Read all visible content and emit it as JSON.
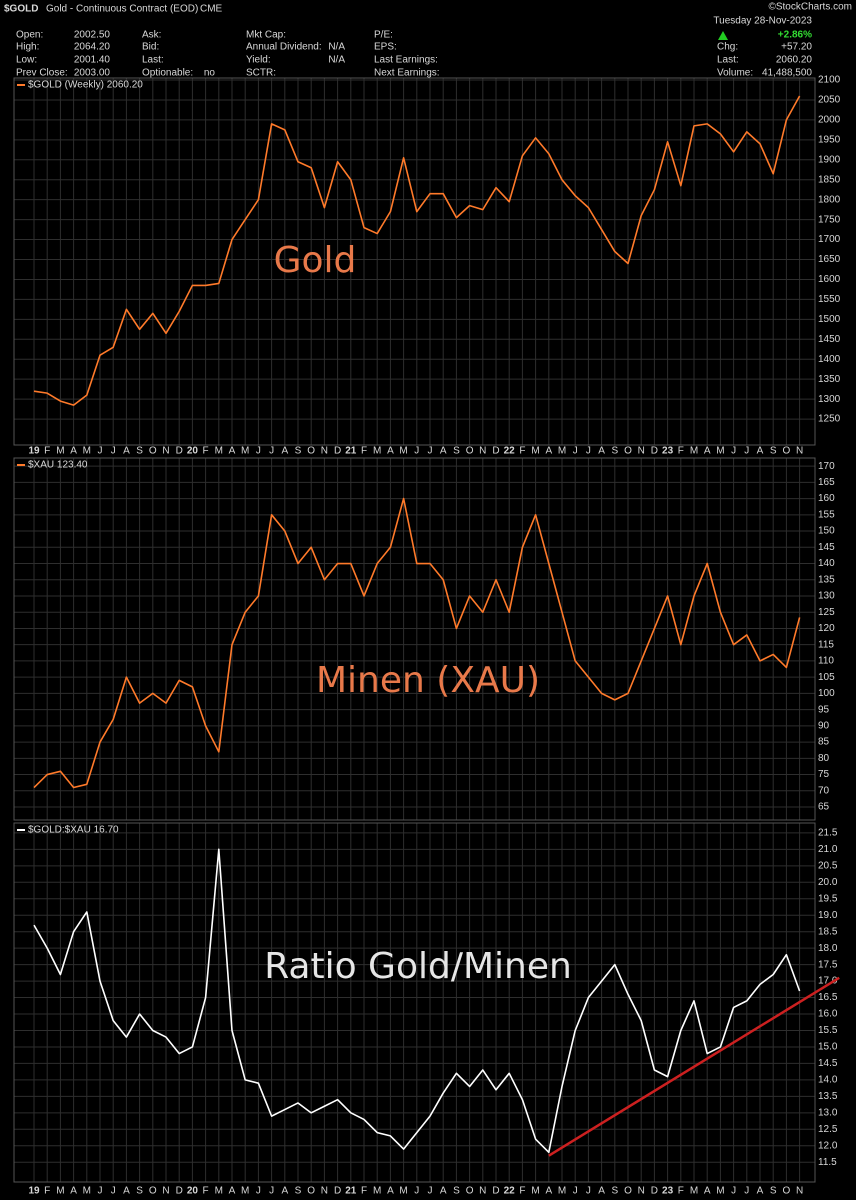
{
  "header": {
    "symbol": "$GOLD",
    "description": "Gold - Continuous Contract (EOD)",
    "exchange": "CME",
    "date": "Tuesday  28-Nov-2023",
    "credit": "©StockCharts.com",
    "columns": [
      [
        {
          "label": "Open:",
          "value": "2002.50"
        },
        {
          "label": "High:",
          "value": "2064.20"
        },
        {
          "label": "Low:",
          "value": "2001.40"
        },
        {
          "label": "Prev Close:",
          "value": "2003.00"
        }
      ],
      [
        {
          "label": "Ask:"
        },
        {
          "label": "Bid:"
        },
        {
          "label": "Last:"
        },
        {
          "label": "Optionable:",
          "value": "no"
        }
      ],
      [
        {
          "label": "Mkt Cap:"
        },
        {
          "label": "Annual Dividend:",
          "value": "N/A"
        },
        {
          "label": "Yield:",
          "value": "N/A"
        },
        {
          "label": "SCTR:"
        }
      ],
      [
        {
          "label": "P/E:"
        },
        {
          "label": "EPS:"
        },
        {
          "label": "Last Earnings:"
        },
        {
          "label": "Next Earnings:"
        }
      ]
    ],
    "change_pct": "+2.86%",
    "quote": [
      {
        "label": "Chg:",
        "value": "+57.20"
      },
      {
        "label": "Last:",
        "value": "2060.20"
      },
      {
        "label": "Volume:",
        "value": "41,488,500"
      }
    ]
  },
  "chart_data": [
    {
      "type": "line",
      "legend": "$GOLD (Weekly) 2060.20",
      "annotation": "Gold",
      "color": "#ff7a2a",
      "annotation_color": "#e8794a",
      "categories": [
        "19",
        "F",
        "M",
        "A",
        "M",
        "J",
        "J",
        "A",
        "S",
        "O",
        "N",
        "D",
        "20",
        "F",
        "M",
        "A",
        "M",
        "J",
        "J",
        "A",
        "S",
        "O",
        "N",
        "D",
        "21",
        "F",
        "M",
        "A",
        "M",
        "J",
        "J",
        "A",
        "S",
        "O",
        "N",
        "D",
        "22",
        "F",
        "M",
        "A",
        "M",
        "J",
        "J",
        "A",
        "S",
        "O",
        "N",
        "D",
        "23",
        "F",
        "M",
        "A",
        "M",
        "J",
        "J",
        "A",
        "S",
        "O",
        "N"
      ],
      "values": [
        1320,
        1315,
        1295,
        1285,
        1310,
        1410,
        1430,
        1525,
        1475,
        1515,
        1465,
        1520,
        1585,
        1585,
        1590,
        1700,
        1750,
        1800,
        1990,
        1975,
        1895,
        1880,
        1780,
        1895,
        1850,
        1730,
        1715,
        1770,
        1905,
        1770,
        1815,
        1815,
        1755,
        1785,
        1775,
        1830,
        1795,
        1910,
        1955,
        1915,
        1850,
        1810,
        1780,
        1725,
        1670,
        1640,
        1760,
        1825,
        1945,
        1835,
        1985,
        1990,
        1965,
        1920,
        1970,
        1940,
        1865,
        2000,
        2060
      ],
      "ylim": [
        1185,
        2105
      ],
      "yticks": [
        1250,
        1300,
        1350,
        1400,
        1450,
        1500,
        1550,
        1600,
        1650,
        1700,
        1750,
        1800,
        1850,
        1900,
        1950,
        2000,
        2050,
        2100
      ],
      "grid": true
    },
    {
      "type": "line",
      "legend": "$XAU 123.40",
      "annotation": "Minen (XAU)",
      "color": "#ff7a2a",
      "annotation_color": "#e8794a",
      "values": [
        71,
        75,
        76,
        71,
        72,
        85,
        92,
        105,
        97,
        100,
        97,
        104,
        102,
        90,
        82,
        115,
        125,
        130,
        155,
        150,
        140,
        145,
        135,
        140,
        140,
        130,
        140,
        145,
        160,
        140,
        140,
        135,
        120,
        130,
        125,
        135,
        125,
        145,
        155,
        140,
        125,
        110,
        105,
        100,
        98,
        100,
        110,
        120,
        130,
        115,
        130,
        140,
        125,
        115,
        118,
        110,
        112,
        108,
        123.4
      ],
      "ylim": [
        61,
        172.5
      ],
      "yticks": [
        65,
        70,
        75,
        80,
        85,
        90,
        95,
        100,
        105,
        110,
        115,
        120,
        125,
        130,
        135,
        140,
        145,
        150,
        155,
        160,
        165,
        170
      ],
      "grid": true
    },
    {
      "type": "line",
      "legend": "$GOLD:$XAU 16.70",
      "annotation": "Ratio Gold/Minen",
      "color": "#ffffff",
      "annotation_color": "#e6e6e6",
      "categories": [
        "19",
        "F",
        "M",
        "A",
        "M",
        "J",
        "J",
        "A",
        "S",
        "O",
        "N",
        "D",
        "20",
        "F",
        "M",
        "A",
        "M",
        "J",
        "J",
        "A",
        "S",
        "O",
        "N",
        "D",
        "21",
        "F",
        "M",
        "A",
        "M",
        "J",
        "J",
        "A",
        "S",
        "O",
        "N",
        "D",
        "22",
        "F",
        "M",
        "A",
        "M",
        "J",
        "J",
        "A",
        "S",
        "O",
        "N",
        "D",
        "23",
        "F",
        "M",
        "A",
        "M",
        "J",
        "J",
        "A",
        "S",
        "O",
        "N"
      ],
      "values": [
        18.7,
        18.0,
        17.2,
        18.5,
        19.1,
        17.0,
        15.8,
        15.3,
        16.0,
        15.5,
        15.3,
        14.8,
        15.0,
        16.5,
        21.0,
        15.5,
        14.0,
        13.9,
        12.9,
        13.1,
        13.3,
        13.0,
        13.2,
        13.4,
        13.0,
        12.8,
        12.4,
        12.3,
        11.9,
        12.4,
        12.9,
        13.6,
        14.2,
        13.8,
        14.3,
        13.7,
        14.2,
        13.4,
        12.2,
        11.8,
        13.8,
        15.5,
        16.5,
        17.0,
        17.5,
        16.6,
        15.8,
        14.3,
        14.1,
        15.5,
        16.4,
        14.8,
        15.0,
        16.2,
        16.4,
        16.9,
        17.2,
        17.8,
        16.7
      ],
      "ylim": [
        10.9,
        21.8
      ],
      "yticks": [
        11.5,
        {
          "value": 12,
          "label": "12.0"
        },
        12.5,
        {
          "value": 13,
          "label": "13.0"
        },
        13.5,
        {
          "value": 14,
          "label": "14.0"
        },
        14.5,
        {
          "value": 15,
          "label": "15.0"
        },
        15.5,
        {
          "value": 16,
          "label": "16.0"
        },
        16.5,
        {
          "value": 17,
          "label": "17.0"
        },
        17.5,
        {
          "value": 18,
          "label": "18.0"
        },
        18.5,
        {
          "value": 19,
          "label": "19.0"
        },
        19.5,
        {
          "value": 20,
          "label": "20.0"
        },
        20.5,
        {
          "value": 21,
          "label": "21.0"
        },
        21.5
      ],
      "grid": true,
      "trendline": {
        "from": [
          39,
          11.7
        ],
        "to": [
          61,
          17.1
        ],
        "color": "#cc2020"
      }
    }
  ]
}
